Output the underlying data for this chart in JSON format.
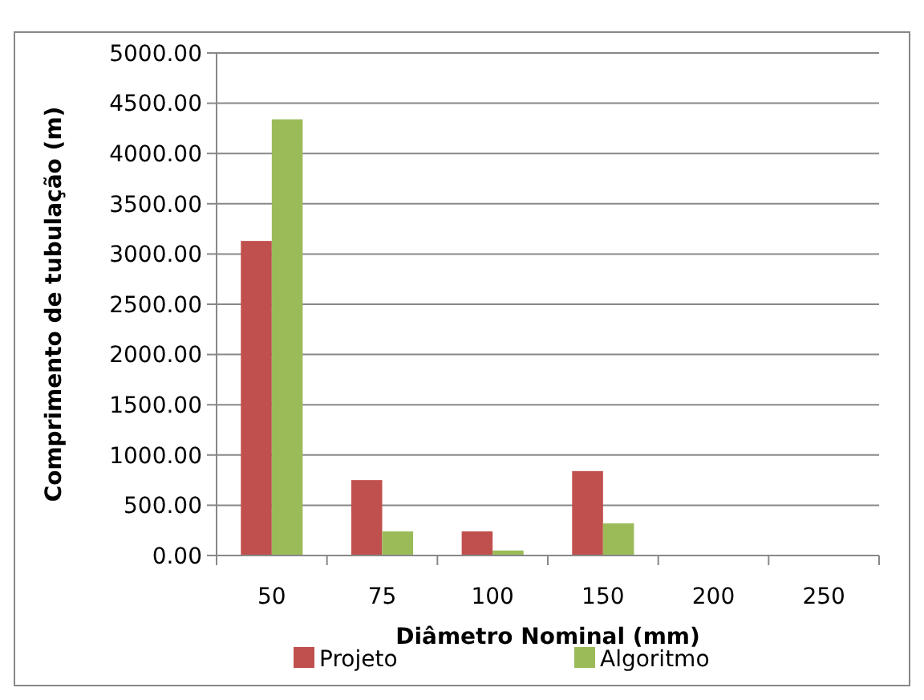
{
  "chart_data": {
    "type": "bar",
    "xlabel": "Diâmetro Nominal (mm)",
    "ylabel": "Comprimento de tubulação  (m)",
    "categories": [
      "50",
      "75",
      "100",
      "150",
      "200",
      "250"
    ],
    "series": [
      {
        "name": "Projeto",
        "color": "#c0504d",
        "values": [
          3130,
          750,
          240,
          840,
          0,
          0
        ]
      },
      {
        "name": "Algoritmo",
        "color": "#9bbb59",
        "values": [
          4340,
          240,
          50,
          320,
          0,
          0
        ]
      }
    ],
    "ylim": [
      0,
      5000
    ],
    "yticks": [
      {
        "value": 0,
        "label": "0.00"
      },
      {
        "value": 500,
        "label": "500.00"
      },
      {
        "value": 1000,
        "label": "1000.00"
      },
      {
        "value": 1500,
        "label": "1500.00"
      },
      {
        "value": 2000,
        "label": "2000.00"
      },
      {
        "value": 2500,
        "label": "2500.00"
      },
      {
        "value": 3000,
        "label": "3000.00"
      },
      {
        "value": 3500,
        "label": "3500.00"
      },
      {
        "value": 4000,
        "label": "4000.00"
      },
      {
        "value": 4500,
        "label": "4500.00"
      },
      {
        "value": 5000,
        "label": "5000.00"
      }
    ],
    "grid": "y",
    "legend": "bottom"
  }
}
